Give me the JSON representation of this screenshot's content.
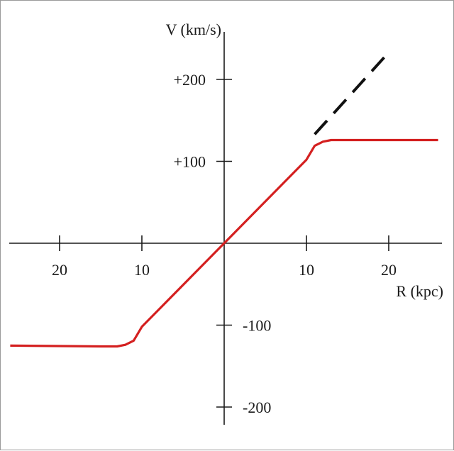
{
  "chart_data": {
    "type": "line",
    "title": "",
    "xlabel": "R (kpc)",
    "ylabel": "V (km/s)",
    "xlim": [
      -26,
      26
    ],
    "ylim": [
      -220,
      230
    ],
    "grid": false,
    "x_ticks": [
      -20,
      -10,
      10,
      20
    ],
    "x_tick_labels": [
      "20",
      "10",
      "10",
      "20"
    ],
    "y_ticks": [
      200,
      100,
      -100,
      -200
    ],
    "y_tick_labels": [
      "+200",
      "+100",
      "-100",
      "-200"
    ],
    "series": [
      {
        "style": "solid",
        "color": "#d42020",
        "x": [
          -26,
          -15,
          -13,
          -12,
          -11,
          -10,
          0,
          10,
          11,
          12,
          13,
          15,
          26
        ],
        "y": [
          -125,
          -126,
          -126,
          -124,
          -119,
          -102,
          0,
          102,
          119,
          124,
          126,
          126,
          126
        ]
      },
      {
        "style": "dashed",
        "color": "#111111",
        "x": [
          11,
          20
        ],
        "y": [
          133,
          233
        ]
      }
    ]
  }
}
